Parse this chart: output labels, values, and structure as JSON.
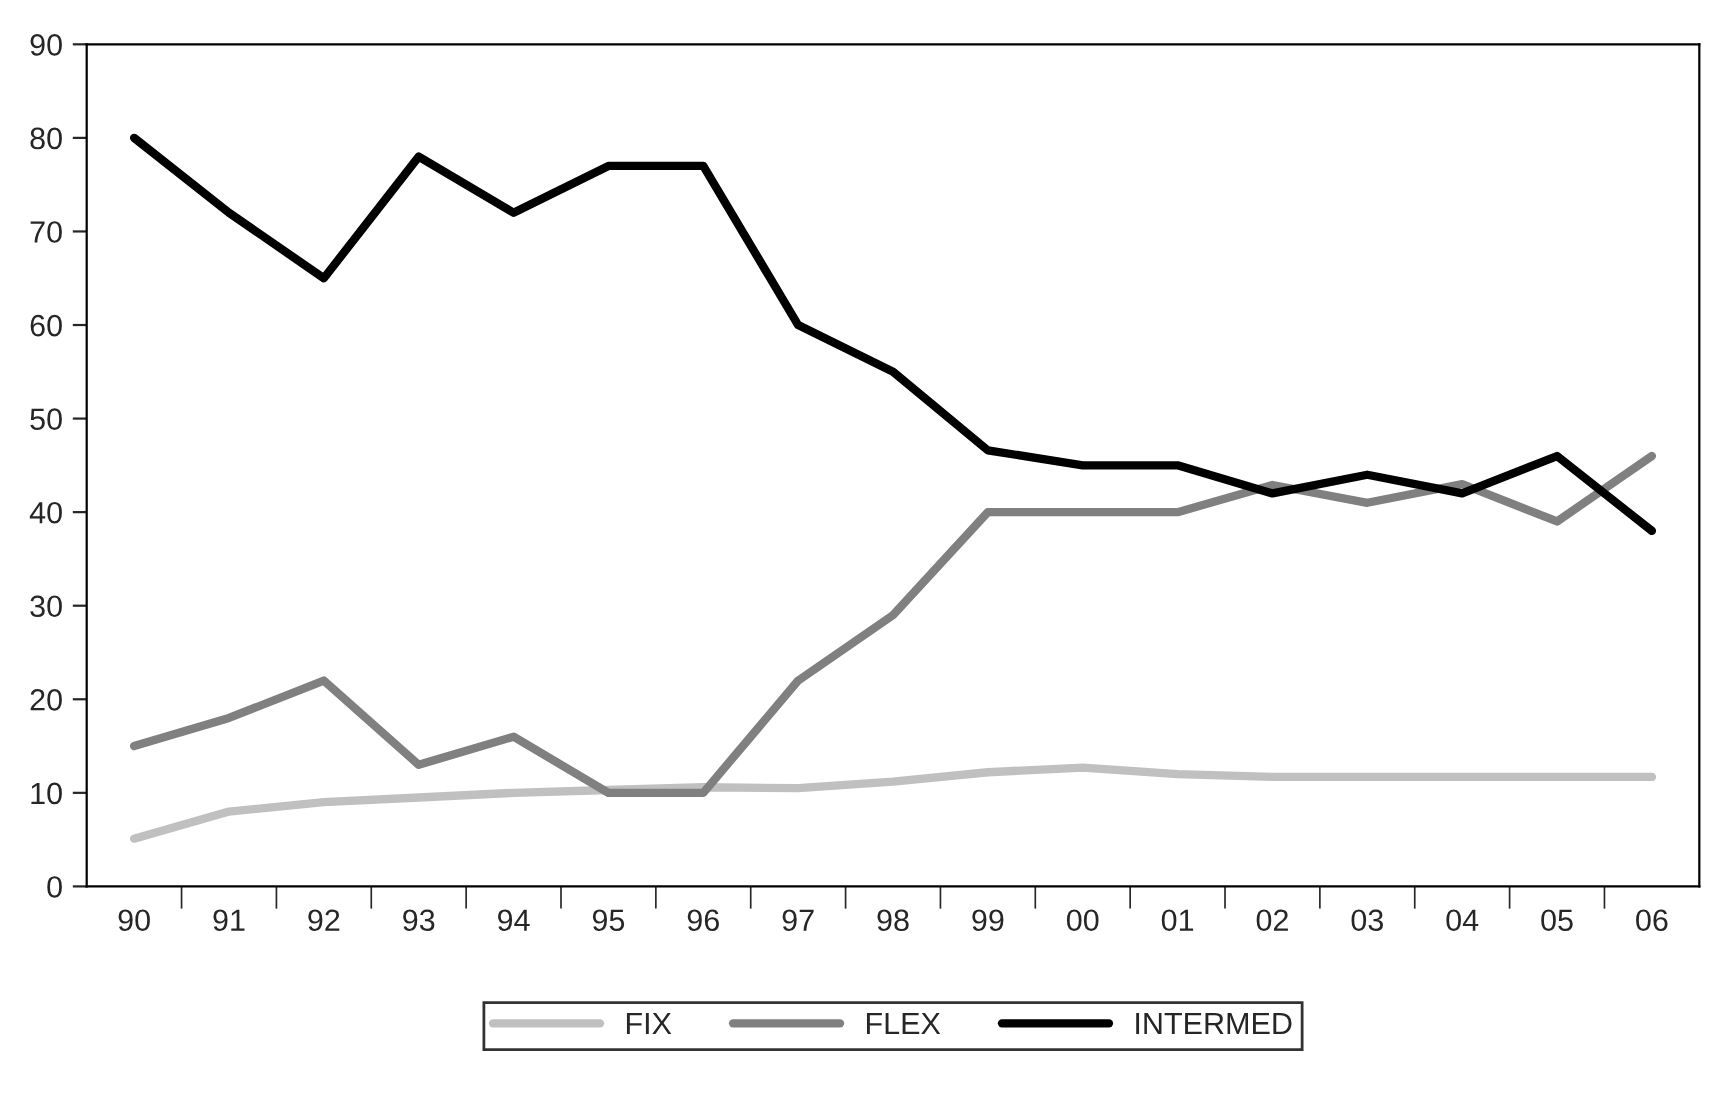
{
  "chart_data": {
    "type": "line",
    "categories": [
      "90",
      "91",
      "92",
      "93",
      "94",
      "95",
      "96",
      "97",
      "98",
      "99",
      "00",
      "01",
      "02",
      "03",
      "04",
      "05",
      "06"
    ],
    "series": [
      {
        "name": "FIX",
        "color": "#c0c0c0",
        "values": [
          5.1,
          8,
          9,
          9.5,
          10,
          10.3,
          10.6,
          10.5,
          11.2,
          12.2,
          12.7,
          12,
          11.7,
          11.7,
          11.7,
          11.7,
          11.7
        ]
      },
      {
        "name": "FLEX",
        "color": "#808080",
        "values": [
          15,
          18,
          22,
          13,
          16,
          10,
          10,
          22,
          29,
          40,
          40,
          40,
          42.9,
          41,
          43,
          39,
          46
        ]
      },
      {
        "name": "INTERMED",
        "color": "#000000",
        "values": [
          80,
          72,
          65,
          78,
          72,
          77,
          77,
          60,
          55,
          46.6,
          45,
          45,
          42,
          44,
          42,
          46,
          38
        ]
      }
    ],
    "ylim": [
      0,
      90
    ],
    "yticks": [
      0,
      10,
      20,
      30,
      40,
      50,
      60,
      70,
      80,
      90
    ],
    "grid": false,
    "legend": "bottom",
    "line_style": "solid",
    "marker": "none"
  }
}
